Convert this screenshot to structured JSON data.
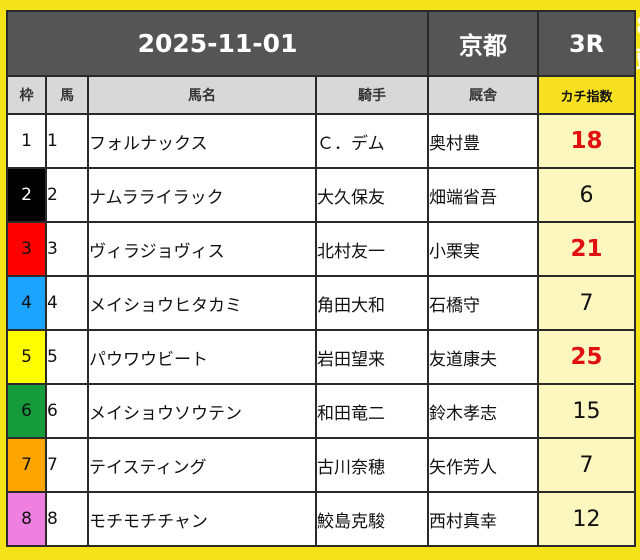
{
  "race": {
    "date": "2025-11-01",
    "venue": "京都",
    "race_no": "3R",
    "runners": "8頭"
  },
  "columns": {
    "waku": "枠",
    "uma": "馬",
    "horse": "馬名",
    "jockey": "騎手",
    "trainer": "厩舎",
    "score": "カチ指数"
  },
  "colors": {
    "waku_1": "#ffffff",
    "waku_2": "#000000",
    "waku_3": "#ff0000",
    "waku_4": "#1aa3ff",
    "waku_5": "#ffff00",
    "waku_6": "#159a3c",
    "waku_7": "#ffa500",
    "waku_8": "#f080e0",
    "highlight_score": "#e01010",
    "score_bg": "#fbf7bf"
  },
  "rows": [
    {
      "waku": "1",
      "uma": "1",
      "horse": "フォルナックス",
      "jockey": "Ｃ．デム",
      "trainer": "奥村豊",
      "score": "18",
      "highlight": true
    },
    {
      "waku": "2",
      "uma": "2",
      "horse": "ナムラライラック",
      "jockey": "大久保友",
      "trainer": "畑端省吾",
      "score": "6",
      "highlight": false
    },
    {
      "waku": "3",
      "uma": "3",
      "horse": "ヴィラジョヴィス",
      "jockey": "北村友一",
      "trainer": "小栗実",
      "score": "21",
      "highlight": true
    },
    {
      "waku": "4",
      "uma": "4",
      "horse": "メイショウヒタカミ",
      "jockey": "角田大和",
      "trainer": "石橋守",
      "score": "7",
      "highlight": false
    },
    {
      "waku": "5",
      "uma": "5",
      "horse": "パウワウビート",
      "jockey": "岩田望来",
      "trainer": "友道康夫",
      "score": "25",
      "highlight": true
    },
    {
      "waku": "6",
      "uma": "6",
      "horse": "メイショウソウテン",
      "jockey": "和田竜二",
      "trainer": "鈴木孝志",
      "score": "15",
      "highlight": false
    },
    {
      "waku": "7",
      "uma": "7",
      "horse": "テイスティング",
      "jockey": "古川奈穂",
      "trainer": "矢作芳人",
      "score": "7",
      "highlight": false
    },
    {
      "waku": "8",
      "uma": "8",
      "horse": "モチモチチャン",
      "jockey": "鮫島克駿",
      "trainer": "西村真幸",
      "score": "12",
      "highlight": false
    }
  ]
}
